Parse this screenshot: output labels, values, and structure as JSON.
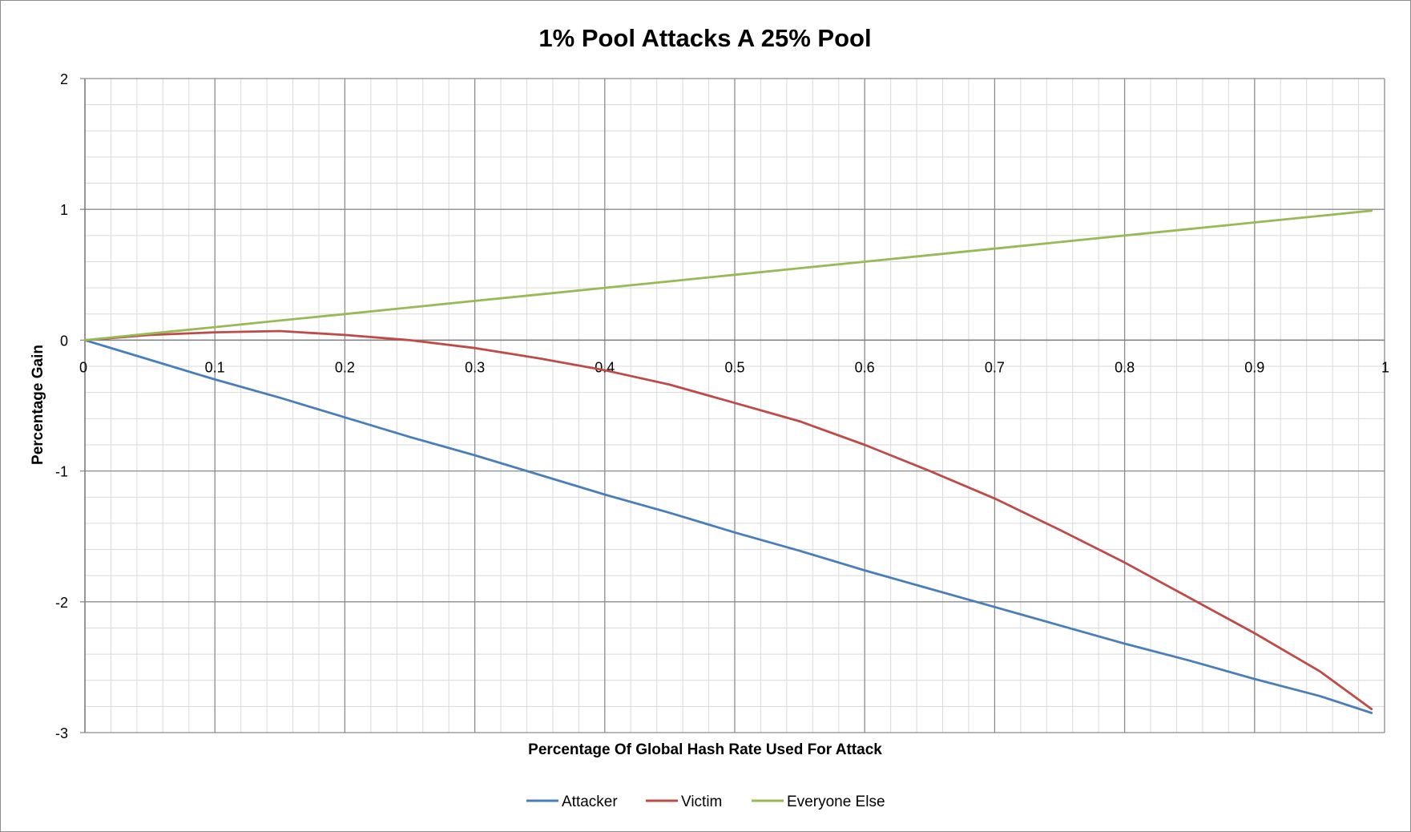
{
  "chart_data": {
    "type": "line",
    "title": "1% Pool Attacks A 25% Pool",
    "xlabel": "Percentage Of Global Hash Rate Used For Attack",
    "ylabel": "Percentage Gain",
    "xlim": [
      0,
      1
    ],
    "ylim": [
      -3,
      2
    ],
    "x_ticks": [
      "0",
      "0.1",
      "0.2",
      "0.3",
      "0.4",
      "0.5",
      "0.6",
      "0.7",
      "0.8",
      "0.9",
      "1"
    ],
    "y_ticks": [
      "2",
      "1",
      "0",
      "-1",
      "-2",
      "-3"
    ],
    "grid": true,
    "legend_position": "bottom",
    "x": [
      0,
      0.05,
      0.1,
      0.15,
      0.2,
      0.25,
      0.3,
      0.35,
      0.4,
      0.45,
      0.5,
      0.55,
      0.6,
      0.65,
      0.7,
      0.75,
      0.8,
      0.85,
      0.9,
      0.95,
      0.99
    ],
    "series": [
      {
        "name": "Attacker",
        "color": "#4a7ebb",
        "values": [
          0,
          -0.15,
          -0.3,
          -0.44,
          -0.59,
          -0.74,
          -0.88,
          -1.03,
          -1.18,
          -1.32,
          -1.47,
          -1.61,
          -1.76,
          -1.9,
          -2.04,
          -2.18,
          -2.32,
          -2.45,
          -2.59,
          -2.72,
          -2.85
        ]
      },
      {
        "name": "Victim",
        "color": "#be4b48",
        "values": [
          0,
          0.04,
          0.06,
          0.07,
          0.04,
          0.0,
          -0.06,
          -0.14,
          -0.23,
          -0.34,
          -0.48,
          -0.62,
          -0.8,
          -1.0,
          -1.21,
          -1.45,
          -1.7,
          -1.97,
          -2.24,
          -2.53,
          -2.82
        ]
      },
      {
        "name": "Everyone Else",
        "color": "#98b954",
        "values": [
          0,
          0.05,
          0.1,
          0.15,
          0.2,
          0.25,
          0.3,
          0.35,
          0.4,
          0.45,
          0.5,
          0.55,
          0.6,
          0.65,
          0.7,
          0.75,
          0.8,
          0.85,
          0.9,
          0.95,
          0.99
        ]
      }
    ]
  }
}
